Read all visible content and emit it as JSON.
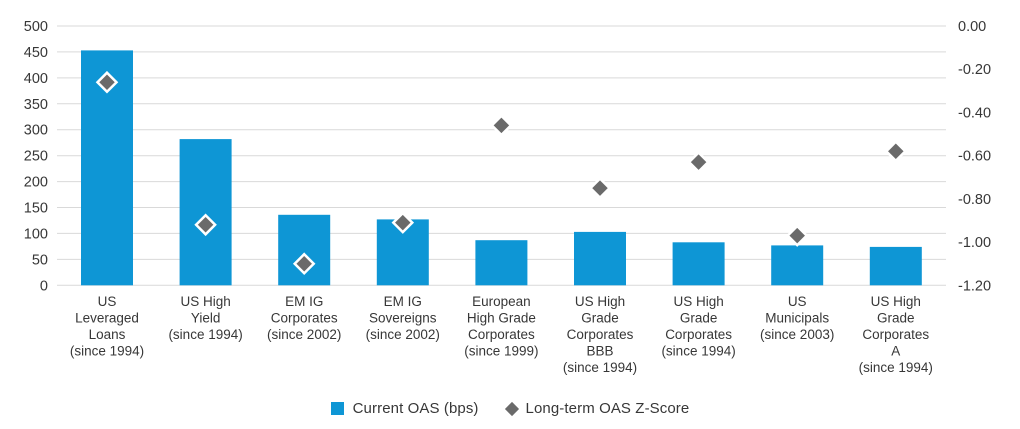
{
  "chart_data": {
    "type": "bar",
    "subtype": "combo-bar-scatter-dual-axis",
    "title": "",
    "xlabel": "",
    "ylabel_left": "",
    "ylabel_right": "",
    "grid": true,
    "legend_position": "bottom-center",
    "categories": [
      "US Leveraged Loans (since 1994)",
      "US High Yield (since 1994)",
      "EM IG Corporates (since 2002)",
      "EM IG Sovereigns (since 2002)",
      "European High Grade Corporates (since 1999)",
      "US High Grade Corporates BBB (since 1994)",
      "US High Grade Corporates (since 1994)",
      "US Municipals (since 2003)",
      "US High Grade Corporates A (since 1994)"
    ],
    "category_lines": [
      [
        "US",
        "Leveraged",
        "Loans",
        "(since 1994)"
      ],
      [
        "US High",
        "Yield",
        "(since 1994)"
      ],
      [
        "EM IG",
        "Corporates",
        "(since 2002)"
      ],
      [
        "EM IG",
        "Sovereigns",
        "(since 2002)"
      ],
      [
        "European",
        "High Grade",
        "Corporates",
        "(since 1999)"
      ],
      [
        "US High",
        "Grade",
        "Corporates",
        "BBB",
        "(since 1994)"
      ],
      [
        "US High",
        "Grade",
        "Corporates",
        "(since 1994)"
      ],
      [
        "US",
        "Municipals",
        "(since 2003)"
      ],
      [
        "US High",
        "Grade",
        "Corporates",
        "A",
        "(since 1994)"
      ]
    ],
    "series": [
      {
        "name": "Current OAS (bps)",
        "type": "bar",
        "axis": "left",
        "color": "#0e96d5",
        "values": [
          453,
          282,
          136,
          127,
          87,
          103,
          83,
          77,
          74
        ]
      },
      {
        "name": "Long-term OAS Z-Score",
        "type": "scatter",
        "marker": "diamond",
        "axis": "right",
        "color": "#6a6a6a",
        "marker_stroke": "#ffffff",
        "values": [
          -0.26,
          -0.92,
          -1.1,
          -0.91,
          -0.46,
          -0.75,
          -0.63,
          -0.97,
          -0.58
        ]
      }
    ],
    "left_axis": {
      "min": 0,
      "max": 500,
      "tick_step": 50,
      "tick_labels": [
        "500",
        "450",
        "400",
        "350",
        "300",
        "250",
        "200",
        "150",
        "100",
        "50",
        "0"
      ]
    },
    "right_axis": {
      "min": -1.2,
      "max": 0,
      "tick_step": 0.2,
      "tick_labels": [
        "0.00",
        "-0.20",
        "-0.40",
        "-0.60",
        "-0.80",
        "-1.00",
        "-1.20"
      ]
    },
    "colors": {
      "bar": "#0e96d5",
      "marker": "#6a6a6a",
      "marker_stroke": "#ffffff",
      "gridline": "#d9d9d9",
      "text": "#373737"
    }
  }
}
